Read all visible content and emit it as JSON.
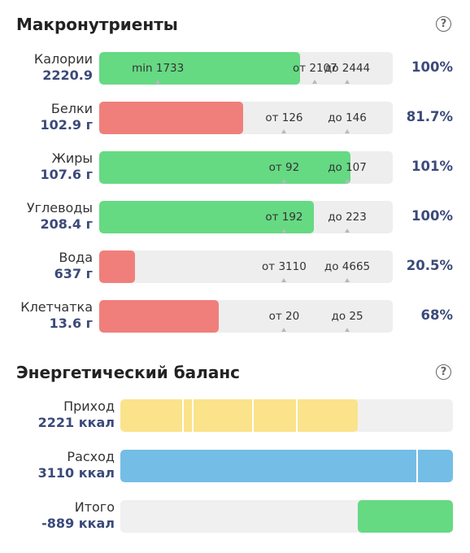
{
  "macros": {
    "title": "Макронутриенты",
    "help": "?",
    "rows": [
      {
        "label": "Калории",
        "value": "2220.9",
        "pct": "100%",
        "fill": 1.0,
        "color": "#66d983",
        "marks": [
          {
            "text": "min 1733",
            "at": 0.2
          },
          {
            "text": "от 2107",
            "at": 0.735
          },
          {
            "text": "до 2444",
            "at": 0.845
          }
        ]
      },
      {
        "label": "Белки",
        "value": "102.9 г",
        "pct": "81.7%",
        "fill": 0.817,
        "color": "#f07f7b",
        "marks": [
          {
            "text": "от 126",
            "at": 0.63
          },
          {
            "text": "до 146",
            "at": 0.845
          }
        ]
      },
      {
        "label": "Жиры",
        "value": "107.6 г",
        "pct": "101%",
        "fill": 1.01,
        "color": "#66d983",
        "marks": [
          {
            "text": "от 92",
            "at": 0.63
          },
          {
            "text": "до 107",
            "at": 0.845
          }
        ]
      },
      {
        "label": "Углеводы",
        "value": "208.4 г",
        "pct": "100%",
        "fill": 1.0,
        "color": "#66d983",
        "marks": [
          {
            "text": "от 192",
            "at": 0.63
          },
          {
            "text": "до 223",
            "at": 0.845
          }
        ]
      },
      {
        "label": "Вода",
        "value": "637 г",
        "pct": "20.5%",
        "fill": 0.205,
        "color": "#f07f7b",
        "marks": [
          {
            "text": "от 3110",
            "at": 0.63
          },
          {
            "text": "до 4665",
            "at": 0.845
          }
        ]
      },
      {
        "label": "Клетчатка",
        "value": "13.6 г",
        "pct": "68%",
        "fill": 0.68,
        "color": "#f07f7b",
        "marks": [
          {
            "text": "от 20",
            "at": 0.63
          },
          {
            "text": "до 25",
            "at": 0.845
          }
        ]
      }
    ]
  },
  "energy": {
    "title": "Энергетический баланс",
    "help": "?",
    "income": {
      "label": "Приход",
      "value": "2221 ккал"
    },
    "expense": {
      "label": "Расход",
      "value": "3110 ккал"
    },
    "total": {
      "label": "Итого",
      "value": "-889 ккал"
    }
  }
}
